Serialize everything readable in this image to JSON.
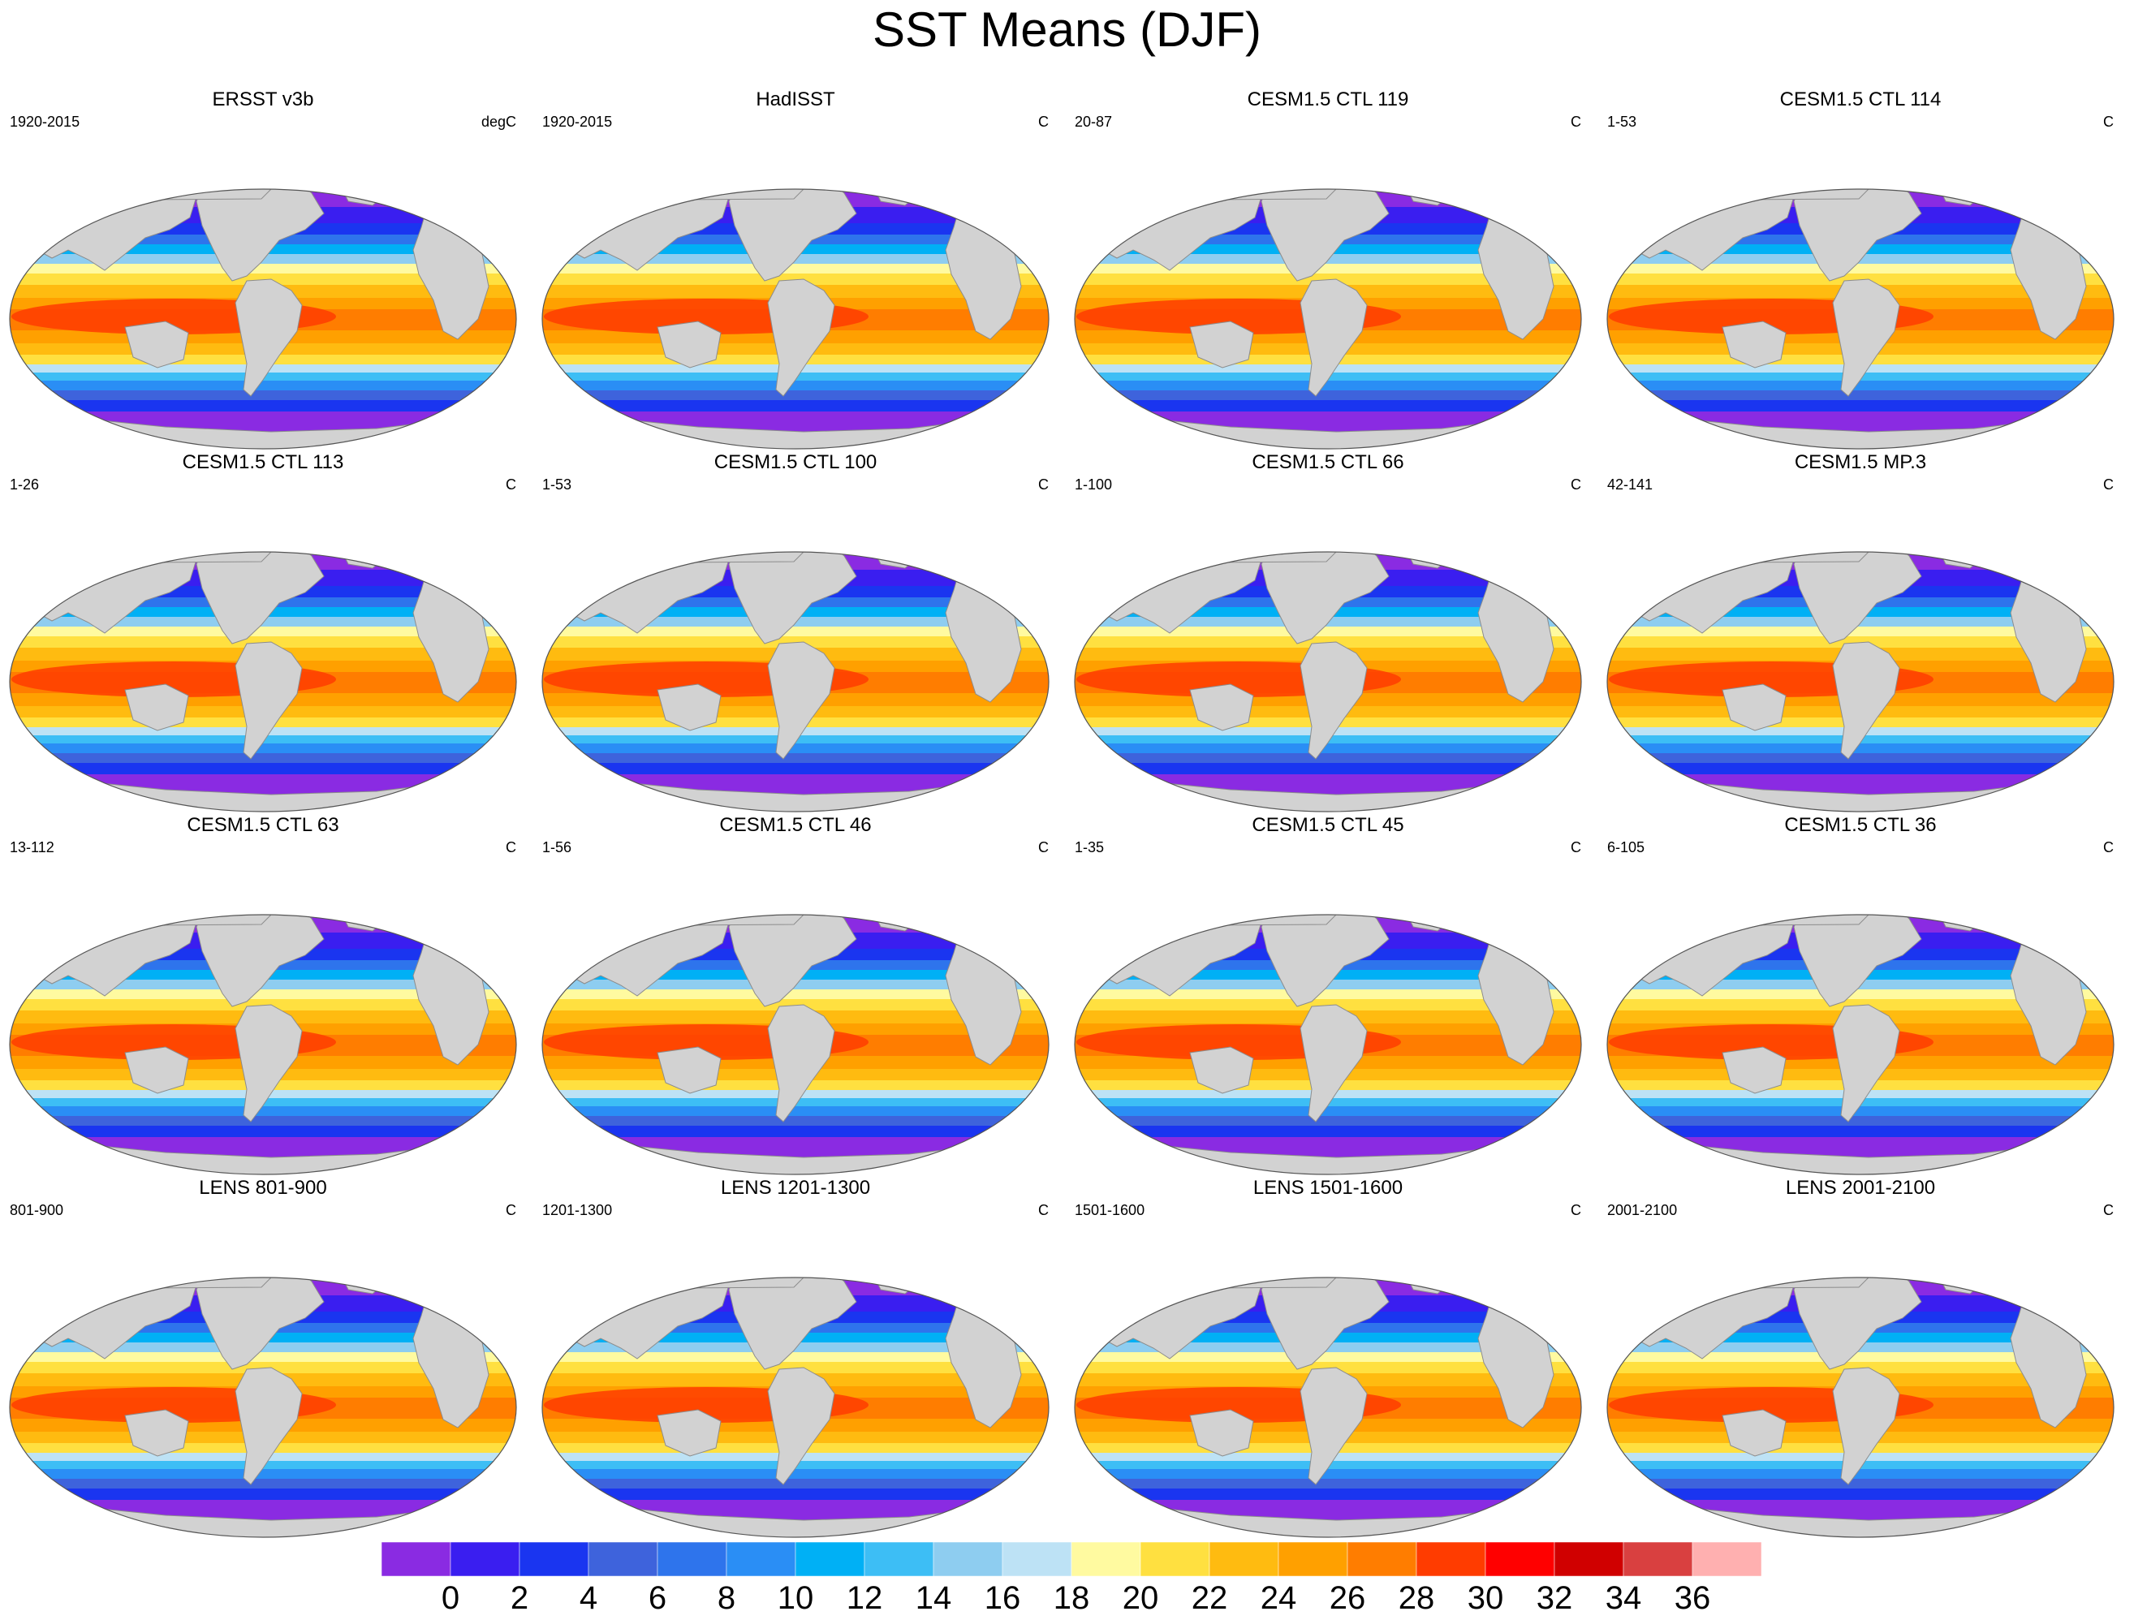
{
  "figure": {
    "title": "SST Means (DJF)",
    "land_color": "#d2d2d2",
    "ocean_nodata_color": "#ffffff"
  },
  "panels": [
    {
      "title": "ERSST v3b",
      "years": "1920-2015",
      "units": "degC"
    },
    {
      "title": "HadISST",
      "years": "1920-2015",
      "units": "C"
    },
    {
      "title": "CESM1.5 CTL 119",
      "years": "20-87",
      "units": "C"
    },
    {
      "title": "CESM1.5 CTL 114",
      "years": "1-53",
      "units": "C"
    },
    {
      "title": "CESM1.5 CTL 113",
      "years": "1-26",
      "units": "C"
    },
    {
      "title": "CESM1.5 CTL 100",
      "years": "1-53",
      "units": "C"
    },
    {
      "title": "CESM1.5 CTL 66",
      "years": "1-100",
      "units": "C"
    },
    {
      "title": "CESM1.5 MP.3",
      "years": "42-141",
      "units": "C"
    },
    {
      "title": "CESM1.5 CTL 63",
      "years": "13-112",
      "units": "C"
    },
    {
      "title": "CESM1.5 CTL 46",
      "years": "1-56",
      "units": "C"
    },
    {
      "title": "CESM1.5 CTL 45",
      "years": "1-35",
      "units": "C"
    },
    {
      "title": "CESM1.5 CTL 36",
      "years": "6-105",
      "units": "C"
    },
    {
      "title": "LENS 801-900",
      "years": "801-900",
      "units": "C"
    },
    {
      "title": "LENS 1201-1300",
      "years": "1201-1300",
      "units": "C"
    },
    {
      "title": "LENS 1501-1600",
      "years": "1501-1600",
      "units": "C"
    },
    {
      "title": "LENS 2001-2100",
      "years": "2001-2100",
      "units": "C"
    }
  ],
  "colorbar": {
    "colors": [
      "#8a2be2",
      "#3a1ef0",
      "#1a35f0",
      "#3e63dc",
      "#2e74ec",
      "#2a8ef5",
      "#00b0f5",
      "#3dbef5",
      "#8ecdf0",
      "#bde2f5",
      "#fffaa0",
      "#ffe040",
      "#ffbb10",
      "#ffa000",
      "#ff7d00",
      "#ff3c00",
      "#ff0000",
      "#d00000",
      "#d94040",
      "#ffb0b0"
    ],
    "tick_labels": [
      "0",
      "2",
      "4",
      "6",
      "8",
      "10",
      "12",
      "14",
      "16",
      "18",
      "20",
      "22",
      "24",
      "26",
      "28",
      "30",
      "32",
      "34",
      "36"
    ]
  }
}
